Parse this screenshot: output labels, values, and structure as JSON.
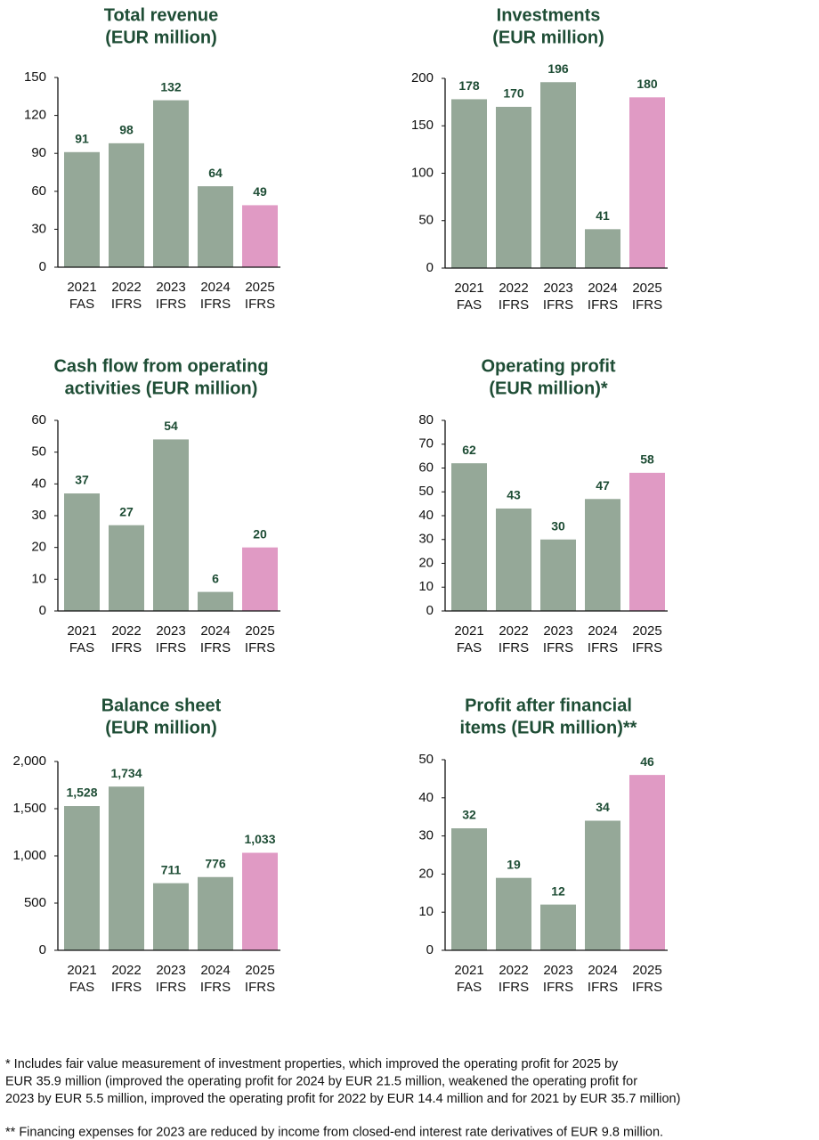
{
  "chart_data": [
    {
      "type": "bar",
      "title": [
        "Total revenue",
        "(EUR million)"
      ],
      "categories": [
        [
          "2021",
          "FAS"
        ],
        [
          "2022",
          "IFRS"
        ],
        [
          "2023",
          "IFRS"
        ],
        [
          "2024",
          "IFRS"
        ],
        [
          "2025",
          "IFRS"
        ]
      ],
      "values": [
        91,
        98,
        132,
        64,
        49
      ],
      "colors": [
        "#95a898",
        "#95a898",
        "#95a898",
        "#95a898",
        "#e09ac4"
      ],
      "ylim": [
        0,
        150
      ],
      "yticks": [
        0,
        30,
        60,
        90,
        120,
        150
      ]
    },
    {
      "type": "bar",
      "title": [
        "Investments",
        "(EUR million)"
      ],
      "categories": [
        [
          "2021",
          "FAS"
        ],
        [
          "2022",
          "IFRS"
        ],
        [
          "2023",
          "IFRS"
        ],
        [
          "2024",
          "IFRS"
        ],
        [
          "2025",
          "IFRS"
        ]
      ],
      "values": [
        178,
        170,
        196,
        41,
        180
      ],
      "colors": [
        "#95a898",
        "#95a898",
        "#95a898",
        "#95a898",
        "#e09ac4"
      ],
      "ylim": [
        0,
        200
      ],
      "yticks": [
        0,
        50,
        100,
        150,
        200
      ]
    },
    {
      "type": "bar",
      "title": [
        "Cash flow from operating",
        "activities (EUR million)"
      ],
      "categories": [
        [
          "2021",
          "FAS"
        ],
        [
          "2022",
          "IFRS"
        ],
        [
          "2023",
          "IFRS"
        ],
        [
          "2024",
          "IFRS"
        ],
        [
          "2025",
          "IFRS"
        ]
      ],
      "values": [
        37,
        27,
        54,
        6,
        20
      ],
      "colors": [
        "#95a898",
        "#95a898",
        "#95a898",
        "#95a898",
        "#e09ac4"
      ],
      "ylim": [
        0,
        60
      ],
      "yticks": [
        0,
        10,
        20,
        30,
        40,
        50,
        60
      ]
    },
    {
      "type": "bar",
      "title": [
        "Operating profit",
        "(EUR million)*"
      ],
      "categories": [
        [
          "2021",
          "FAS"
        ],
        [
          "2022",
          "IFRS"
        ],
        [
          "2023",
          "IFRS"
        ],
        [
          "2024",
          "IFRS"
        ],
        [
          "2025",
          "IFRS"
        ]
      ],
      "values": [
        62,
        43,
        30,
        47,
        58
      ],
      "colors": [
        "#95a898",
        "#95a898",
        "#95a898",
        "#95a898",
        "#e09ac4"
      ],
      "ylim": [
        0,
        80
      ],
      "yticks": [
        0,
        10,
        20,
        30,
        40,
        50,
        60,
        70,
        80
      ]
    },
    {
      "type": "bar",
      "title": [
        "Balance sheet",
        "(EUR million)"
      ],
      "categories": [
        [
          "2021",
          "FAS"
        ],
        [
          "2022",
          "IFRS"
        ],
        [
          "2023",
          "IFRS"
        ],
        [
          "2024",
          "IFRS"
        ],
        [
          "2025",
          "IFRS"
        ]
      ],
      "values": [
        1528,
        1734,
        711,
        776,
        1033
      ],
      "value_labels": [
        "1,528",
        "1,734",
        "711",
        "776",
        "1,033"
      ],
      "colors": [
        "#95a898",
        "#95a898",
        "#95a898",
        "#95a898",
        "#e09ac4"
      ],
      "ylim": [
        0,
        2000
      ],
      "yticks": [
        0,
        500,
        {
          "value": 1000,
          "label": "1,000"
        },
        {
          "value": 1500,
          "label": "1,500"
        },
        {
          "value": 2000,
          "label": "2,000"
        }
      ]
    },
    {
      "type": "bar",
      "title": [
        "Profit after financial",
        "items (EUR million)**"
      ],
      "categories": [
        [
          "2021",
          "FAS"
        ],
        [
          "2022",
          "IFRS"
        ],
        [
          "2023",
          "IFRS"
        ],
        [
          "2024",
          "IFRS"
        ],
        [
          "2025",
          "IFRS"
        ]
      ],
      "values": [
        32,
        19,
        12,
        34,
        46
      ],
      "colors": [
        "#95a898",
        "#95a898",
        "#95a898",
        "#95a898",
        "#e09ac4"
      ],
      "ylim": [
        0,
        50
      ],
      "yticks": [
        0,
        10,
        20,
        30,
        40,
        50
      ]
    }
  ],
  "notes": [
    [
      "* Includes fair value measurement of investment properties, which improved the operating profit for 2025 by",
      "EUR 35.9 million (improved the operating profit for 2024 by EUR 21.5 million, weakened the operating profit for",
      "2023 by EUR 5.5 million, improved the operating profit for 2022 by EUR 14.4 million and for 2021 by EUR 35.7 million)"
    ],
    [
      "** Financing expenses for 2023 are reduced by income from closed-end interest rate derivatives of EUR 9.8 million."
    ]
  ]
}
